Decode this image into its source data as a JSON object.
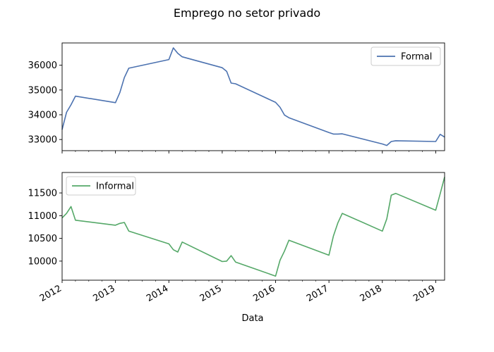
{
  "title": "Emprego no setor privado",
  "xlabel": "Data",
  "chart_data": [
    {
      "type": "line",
      "title": "",
      "ylabel": "",
      "xlim": [
        "2012-01",
        "2019-03"
      ],
      "ylim": [
        32550,
        36900
      ],
      "yticks": [
        33000,
        34000,
        35000,
        36000
      ],
      "grid": false,
      "legend_position": "top-right",
      "x_tick_labels_visible": false,
      "series": [
        {
          "name": "Formal",
          "color": "#4c72b0",
          "points": [
            [
              "2012-01",
              33400
            ],
            [
              "2012-02",
              34100
            ],
            [
              "2012-03",
              34400
            ],
            [
              "2012-04",
              34750
            ],
            [
              "2013-01",
              34490
            ],
            [
              "2013-02",
              34900
            ],
            [
              "2013-03",
              35500
            ],
            [
              "2013-04",
              35880
            ],
            [
              "2014-01",
              36230
            ],
            [
              "2014-02",
              36700
            ],
            [
              "2014-03",
              36480
            ],
            [
              "2014-04",
              36340
            ],
            [
              "2015-01",
              35900
            ],
            [
              "2015-02",
              35750
            ],
            [
              "2015-03",
              35280
            ],
            [
              "2015-04",
              35250
            ],
            [
              "2016-01",
              34500
            ],
            [
              "2016-02",
              34300
            ],
            [
              "2016-03",
              33990
            ],
            [
              "2016-04",
              33880
            ],
            [
              "2017-01",
              33280
            ],
            [
              "2017-02",
              33220
            ],
            [
              "2017-03",
              33220
            ],
            [
              "2017-04",
              33230
            ],
            [
              "2018-01",
              32820
            ],
            [
              "2018-02",
              32760
            ],
            [
              "2018-03",
              32920
            ],
            [
              "2018-04",
              32950
            ],
            [
              "2019-01",
              32920
            ],
            [
              "2019-02",
              33210
            ],
            [
              "2019-03",
              33100
            ]
          ]
        }
      ]
    },
    {
      "type": "line",
      "title": "",
      "ylabel": "",
      "xlim": [
        "2012-01",
        "2019-03"
      ],
      "ylim": [
        9580,
        11950
      ],
      "yticks": [
        10000,
        10500,
        11000,
        11500
      ],
      "grid": false,
      "legend_position": "top-left",
      "x_tick_labels": [
        "2012",
        "2013",
        "2014",
        "2015",
        "2016",
        "2017",
        "2018",
        "2019"
      ],
      "series": [
        {
          "name": "Informal",
          "color": "#55a868",
          "points": [
            [
              "2012-01",
              10950
            ],
            [
              "2012-02",
              11050
            ],
            [
              "2012-03",
              11200
            ],
            [
              "2012-04",
              10900
            ],
            [
              "2013-01",
              10790
            ],
            [
              "2013-02",
              10830
            ],
            [
              "2013-03",
              10850
            ],
            [
              "2013-04",
              10660
            ],
            [
              "2014-01",
              10380
            ],
            [
              "2014-02",
              10250
            ],
            [
              "2014-03",
              10200
            ],
            [
              "2014-04",
              10420
            ],
            [
              "2015-01",
              9990
            ],
            [
              "2015-02",
              10000
            ],
            [
              "2015-03",
              10120
            ],
            [
              "2015-04",
              9980
            ],
            [
              "2016-01",
              9670
            ],
            [
              "2016-02",
              10020
            ],
            [
              "2016-03",
              10220
            ],
            [
              "2016-04",
              10460
            ],
            [
              "2017-01",
              10130
            ],
            [
              "2017-02",
              10550
            ],
            [
              "2017-03",
              10840
            ],
            [
              "2017-04",
              11050
            ],
            [
              "2018-01",
              10660
            ],
            [
              "2018-02",
              10930
            ],
            [
              "2018-03",
              11450
            ],
            [
              "2018-04",
              11490
            ],
            [
              "2019-01",
              11120
            ],
            [
              "2019-02",
              11480
            ],
            [
              "2019-03",
              11850
            ]
          ]
        }
      ]
    }
  ]
}
